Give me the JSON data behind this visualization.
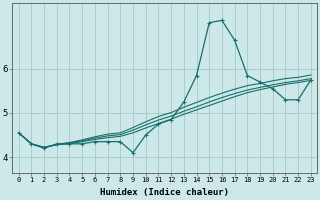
{
  "xlabel": "Humidex (Indice chaleur)",
  "background_color": "#cce8e8",
  "grid_color": "#a0c0c0",
  "line_color": "#1a6e6e",
  "x_ticks": [
    0,
    1,
    2,
    3,
    4,
    5,
    6,
    7,
    8,
    9,
    10,
    11,
    12,
    13,
    14,
    15,
    16,
    17,
    18,
    19,
    20,
    21,
    22,
    23
  ],
  "ylim": [
    3.65,
    7.5
  ],
  "yticks": [
    4,
    5,
    6
  ],
  "figsize": [
    3.2,
    2.0
  ],
  "dpi": 100,
  "series_main": [
    4.55,
    4.3,
    4.2,
    4.3,
    4.3,
    4.3,
    4.35,
    4.35,
    4.35,
    4.1,
    4.5,
    4.75,
    4.85,
    5.25,
    5.85,
    7.05,
    7.1,
    6.65,
    5.85,
    5.7,
    5.55,
    5.3,
    5.3,
    5.75
  ],
  "series_trend1": [
    4.55,
    4.3,
    4.22,
    4.28,
    4.3,
    4.35,
    4.4,
    4.44,
    4.47,
    4.55,
    4.66,
    4.76,
    4.86,
    4.97,
    5.07,
    5.17,
    5.27,
    5.37,
    5.46,
    5.53,
    5.59,
    5.65,
    5.69,
    5.74
  ],
  "series_trend2": [
    4.55,
    4.3,
    4.22,
    4.28,
    4.32,
    4.37,
    4.43,
    4.48,
    4.51,
    4.61,
    4.73,
    4.84,
    4.93,
    5.04,
    5.14,
    5.25,
    5.35,
    5.44,
    5.52,
    5.58,
    5.64,
    5.69,
    5.73,
    5.78
  ],
  "series_trend3": [
    4.55,
    4.3,
    4.22,
    4.29,
    4.33,
    4.39,
    4.46,
    4.52,
    4.55,
    4.67,
    4.8,
    4.92,
    5.01,
    5.13,
    5.24,
    5.35,
    5.45,
    5.54,
    5.62,
    5.67,
    5.73,
    5.78,
    5.81,
    5.86
  ]
}
